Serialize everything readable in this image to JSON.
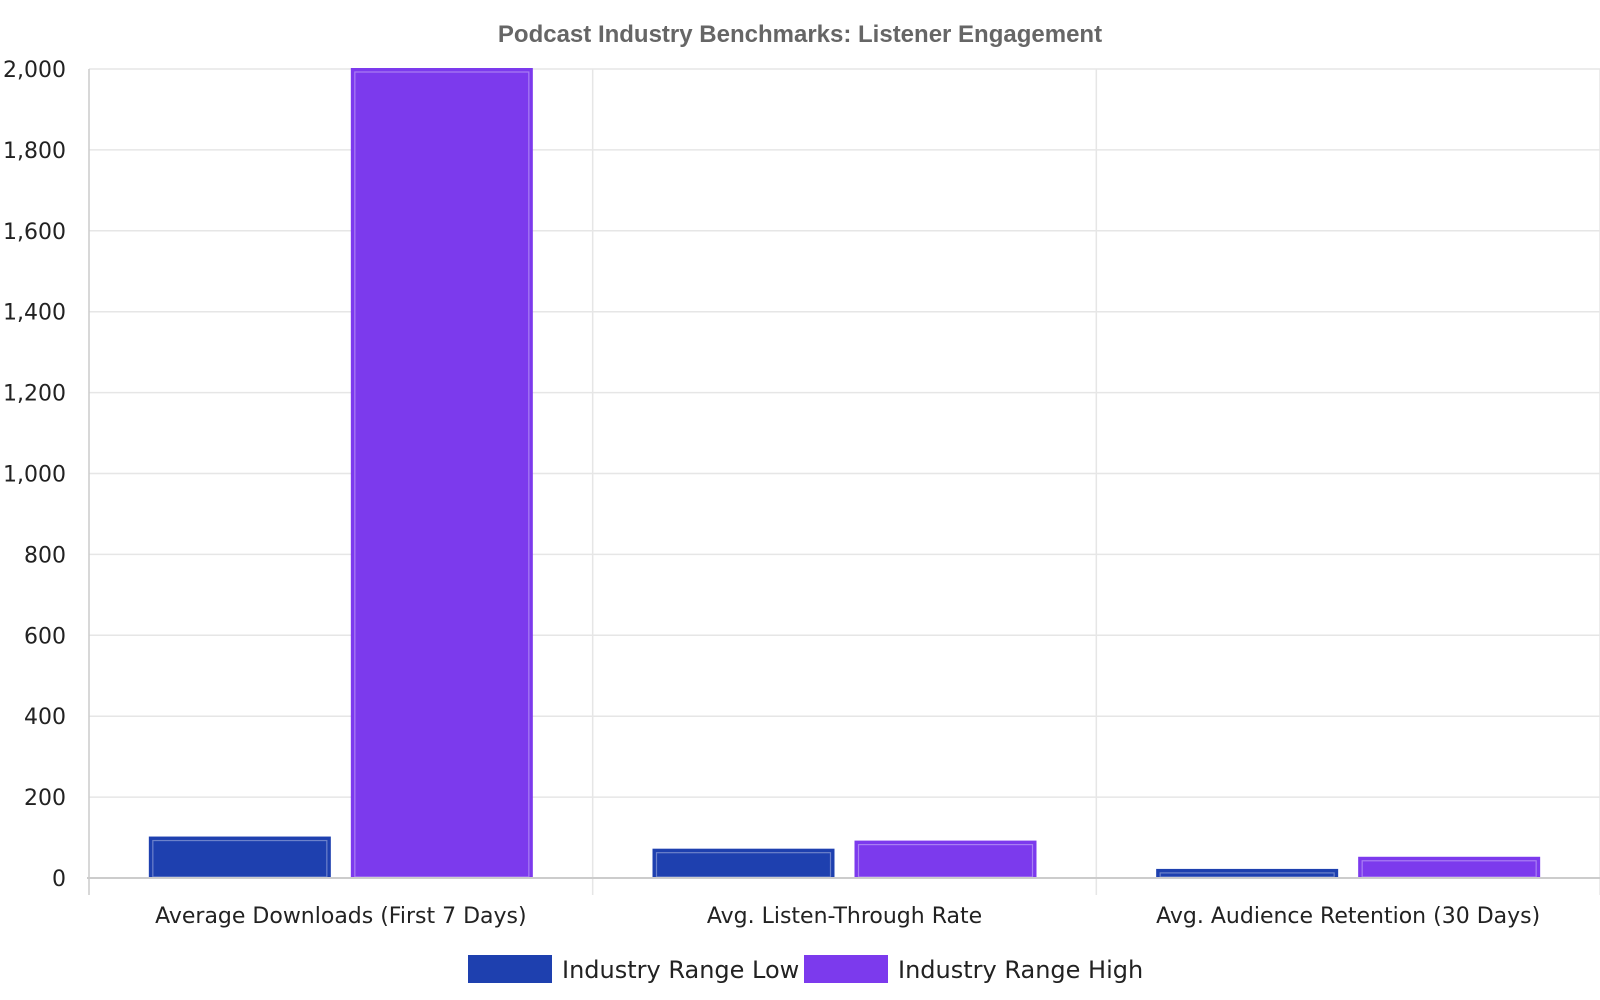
{
  "chart_data": {
    "type": "bar",
    "title": "Podcast Industry Benchmarks: Listener Engagement",
    "xlabel": "",
    "ylabel": "",
    "categories": [
      "Average Downloads (First 7 Days)",
      "Avg. Listen-Through Rate",
      "Avg. Audience Retention (30 Days)"
    ],
    "series": [
      {
        "name": "Industry Range Low",
        "values": [
          100,
          70,
          20
        ],
        "color": "#1e40af"
      },
      {
        "name": "Industry Range High",
        "values": [
          2000,
          90,
          50
        ],
        "color": "#7c3aed"
      }
    ],
    "ylim": [
      0,
      2000
    ],
    "yticks": [
      0,
      200,
      400,
      600,
      800,
      1000,
      1200,
      1400,
      1600,
      1800,
      2000
    ],
    "ytick_labels": [
      "0",
      "200",
      "400",
      "600",
      "800",
      "1,000",
      "1,200",
      "1,400",
      "1,600",
      "1,800",
      "2,000"
    ],
    "grid": true,
    "legend_position": "bottom-center"
  }
}
